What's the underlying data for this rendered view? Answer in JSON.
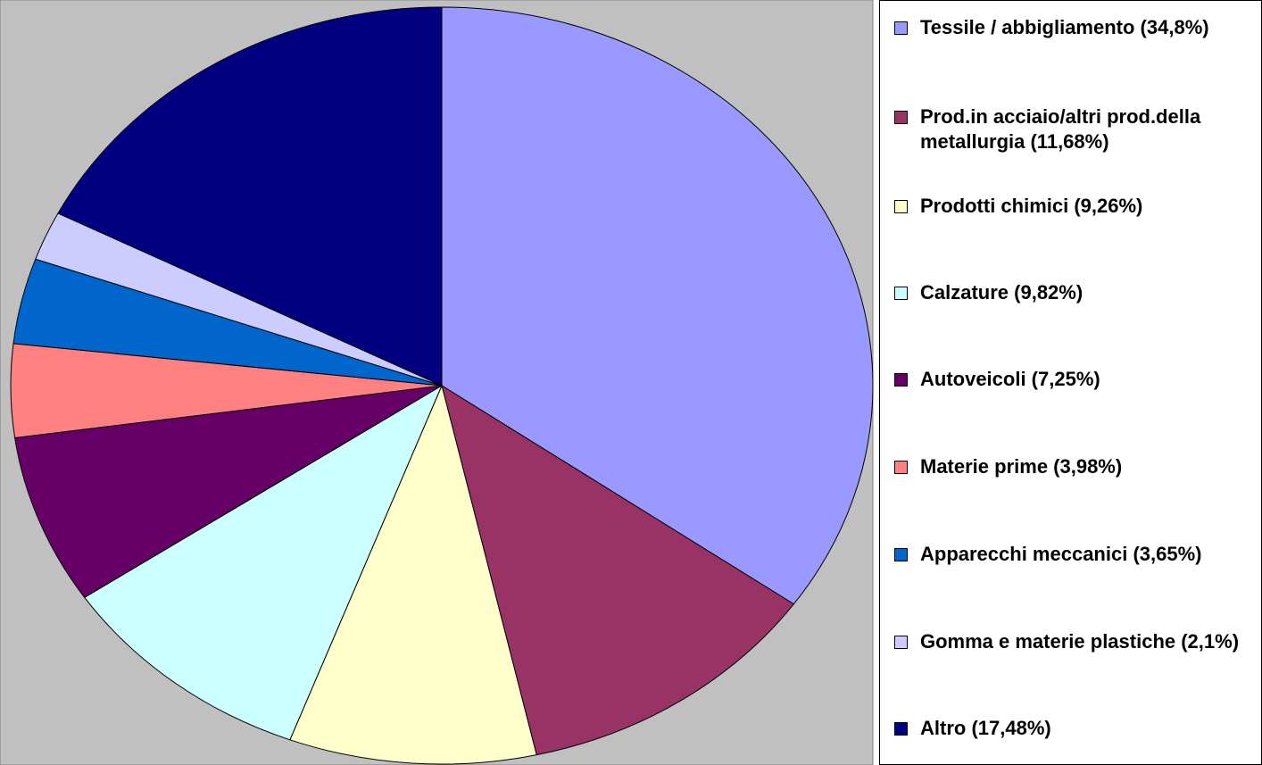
{
  "chart_data": {
    "type": "pie",
    "categories": [
      "Tessile / abbigliamento (34,8%)",
      "Prod.in acciaio/altri prod.della metallurgia (11,68%)",
      "Prodotti chimici (9,26%)",
      "Calzature (9,82%)",
      "Autoveicoli (7,25%)",
      "Materie prime (3,98%)",
      "Apparecchi meccanici (3,65%)",
      "Gomma e materie plastiche (2,1%)",
      "Altro (17,48%)"
    ],
    "values": [
      34.8,
      11.68,
      9.26,
      9.82,
      7.25,
      3.98,
      3.65,
      2.1,
      17.48
    ],
    "colors": [
      "#9999ff",
      "#993366",
      "#ffffcc",
      "#ccffff",
      "#660066",
      "#ff8080",
      "#0066cc",
      "#ccccff",
      "#000080"
    ],
    "legend": "right"
  }
}
